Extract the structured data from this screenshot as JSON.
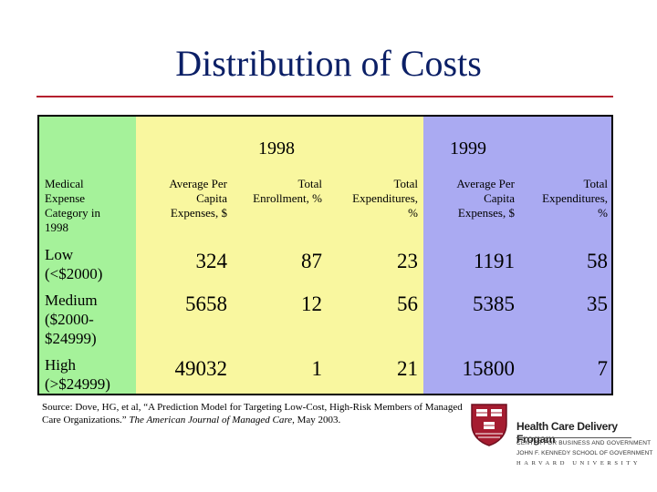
{
  "title": "Distribution of Costs",
  "colors": {
    "title": "#0b1f66",
    "rule": "#b5202e",
    "green": "#a5f29a",
    "yellow": "#f9f79f",
    "blue": "#aaaaf2"
  },
  "years": {
    "y1998": "1998",
    "y1999": "1999"
  },
  "headers": {
    "category": [
      "Medical",
      "Expense",
      "Category in",
      "1998"
    ],
    "avg_1998": [
      "Average Per",
      "Capita",
      "Expenses, $"
    ],
    "enroll_1998": [
      "Total",
      "Enrollment, %"
    ],
    "exp_1998": [
      "Total",
      "Expenditures,",
      "%"
    ],
    "avg_1999": [
      "Average Per",
      "Capita",
      "Expenses, $"
    ],
    "exp_1999": [
      "Total",
      "Expenditures,",
      "%"
    ]
  },
  "rows": [
    {
      "label": [
        "Low",
        "(<$2000)"
      ],
      "avg_1998": "324",
      "enroll_1998": "87",
      "exp_1998": "23",
      "avg_1999": "1191",
      "exp_1999": "58"
    },
    {
      "label": [
        "Medium",
        "($2000-",
        "$24999)"
      ],
      "avg_1998": "5658",
      "enroll_1998": "12",
      "exp_1998": "56",
      "avg_1999": "5385",
      "exp_1999": "35"
    },
    {
      "label": [
        "High",
        "(>$24999)"
      ],
      "avg_1998": "49032",
      "enroll_1998": "1",
      "exp_1998": "21",
      "avg_1999": "15800",
      "exp_1999": "7"
    }
  ],
  "source": {
    "text": "Source: Dove, HG, et al, “A Prediction Model for Targeting Low-Cost, High-Risk Members of Managed Care Organizations.” ",
    "journal": "The American Journal of Managed Care",
    "tail": ", May 2003."
  },
  "logo": {
    "line1": "Health Care Delivery Frogam",
    "line2": "CENTER FOR BUSINESS AND GOVERNMENT",
    "line3": "JOHN F. KENNEDY SCHOOL OF GOVERNMENT",
    "line4": "HARVARD UNIVERSITY"
  }
}
